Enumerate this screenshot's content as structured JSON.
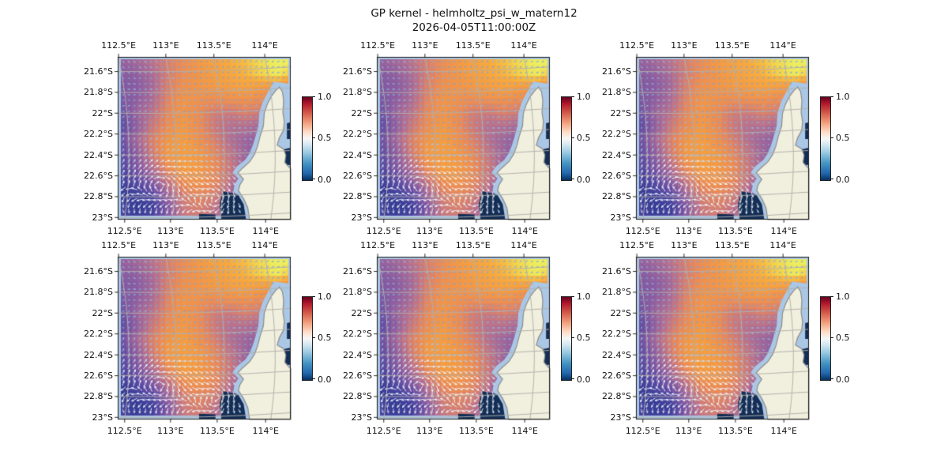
{
  "title": "GP kernel - helmholtz_psi_w_matern12",
  "subtitle": "2026-04-05T11:00:00Z",
  "chart_data": {
    "type": "heatmap",
    "layout": {
      "rows": 2,
      "cols": 3,
      "grid_on": true,
      "legend_position": "right-colorbar"
    },
    "x_ticks": [
      "112.5°E",
      "113°E",
      "113.5°E",
      "114°E"
    ],
    "y_ticks": [
      "21.6°S",
      "21.8°S",
      "22°S",
      "22.2°S",
      "22.4°S",
      "22.6°S",
      "22.8°S",
      "23°S"
    ],
    "xlabel": "",
    "ylabel": "",
    "lon_range": [
      112.5,
      114.27
    ],
    "lat_range": [
      21.46,
      23.02
    ],
    "colorbar": {
      "ticks": [
        "1.0",
        "0.5",
        "0.0"
      ],
      "range": [
        0.0,
        1.0
      ],
      "stops": [
        {
          "p": 0.0,
          "c": "#67001f"
        },
        {
          "p": 0.08,
          "c": "#b2182b"
        },
        {
          "p": 0.2,
          "c": "#d6604d"
        },
        {
          "p": 0.32,
          "c": "#f4a582"
        },
        {
          "p": 0.42,
          "c": "#fddbc7"
        },
        {
          "p": 0.5,
          "c": "#f7f7f7"
        },
        {
          "p": 0.58,
          "c": "#d1e5f0"
        },
        {
          "p": 0.68,
          "c": "#92c5de"
        },
        {
          "p": 0.8,
          "c": "#4393c3"
        },
        {
          "p": 0.92,
          "c": "#2166ac"
        },
        {
          "p": 1.0,
          "c": "#053061"
        }
      ]
    },
    "heat_colormap": [
      {
        "p": 0.0,
        "c": "#16275e"
      },
      {
        "p": 0.08,
        "c": "#222f77"
      },
      {
        "p": 0.16,
        "c": "#333a92"
      },
      {
        "p": 0.26,
        "c": "#4b449f"
      },
      {
        "p": 0.36,
        "c": "#6b51a3"
      },
      {
        "p": 0.46,
        "c": "#8f5fa0"
      },
      {
        "p": 0.55,
        "c": "#b06f93"
      },
      {
        "p": 0.63,
        "c": "#cf7c78"
      },
      {
        "p": 0.7,
        "c": "#e88a5a"
      },
      {
        "p": 0.78,
        "c": "#f39a44"
      },
      {
        "p": 0.86,
        "c": "#f7ab3d"
      },
      {
        "p": 0.93,
        "c": "#f3cf4a"
      },
      {
        "p": 1.0,
        "c": "#ecf060"
      }
    ],
    "values_grid": [
      [
        0.48,
        0.52,
        0.58,
        0.66,
        0.72,
        0.78,
        0.82,
        0.86,
        0.9,
        0.96,
        1.0,
        1.0
      ],
      [
        0.44,
        0.47,
        0.54,
        0.64,
        0.72,
        0.76,
        0.8,
        0.84,
        0.88,
        0.94,
        1.0,
        0.92
      ],
      [
        0.42,
        0.44,
        0.52,
        0.66,
        0.74,
        0.76,
        0.78,
        0.8,
        0.82,
        0.8,
        0.78,
        0.72
      ],
      [
        0.4,
        0.46,
        0.54,
        0.68,
        0.76,
        0.74,
        0.72,
        0.74,
        0.74,
        0.72,
        0.68,
        0.62
      ],
      [
        0.36,
        0.5,
        0.58,
        0.7,
        0.76,
        0.72,
        0.64,
        0.62,
        0.66,
        0.62,
        0.58,
        0.55
      ],
      [
        0.32,
        0.46,
        0.62,
        0.72,
        0.78,
        0.72,
        0.62,
        0.56,
        0.56,
        0.52,
        0.5,
        0.48
      ],
      [
        0.36,
        0.52,
        0.66,
        0.76,
        0.8,
        0.74,
        0.66,
        0.56,
        0.5,
        0.46,
        0.44,
        0.42
      ],
      [
        0.32,
        0.46,
        0.64,
        0.78,
        0.8,
        0.78,
        0.7,
        0.6,
        0.5,
        0.42,
        0.36,
        0.34
      ],
      [
        0.28,
        0.42,
        0.56,
        0.72,
        0.8,
        0.78,
        0.72,
        0.62,
        0.5,
        0.38,
        0.28,
        0.24
      ],
      [
        0.22,
        0.32,
        0.46,
        0.62,
        0.74,
        0.76,
        0.7,
        0.6,
        0.44,
        0.28,
        0.16,
        0.14
      ],
      [
        0.18,
        0.22,
        0.32,
        0.52,
        0.66,
        0.7,
        0.66,
        0.54,
        0.32,
        0.14,
        0.08,
        0.08
      ],
      [
        0.24,
        0.16,
        0.22,
        0.42,
        0.62,
        0.66,
        0.6,
        0.44,
        0.2,
        0.08,
        0.05,
        0.05
      ],
      [
        0.28,
        0.22,
        0.26,
        0.46,
        0.6,
        0.62,
        0.56,
        0.38,
        0.16,
        0.06,
        0.04,
        0.04
      ]
    ],
    "map": {
      "ocean_color": "#aac7e6",
      "land_color": "#f1efdd",
      "land_edge_color": "#8c8c8a",
      "navy_color": "#142e56",
      "grid_color": "#b2b0ac",
      "frame_color": "#1a1a1a",
      "land_polygon": [
        [
          0.935,
          0.185
        ],
        [
          0.912,
          0.208
        ],
        [
          0.888,
          0.242
        ],
        [
          0.864,
          0.292
        ],
        [
          0.847,
          0.348
        ],
        [
          0.842,
          0.425
        ],
        [
          0.823,
          0.487
        ],
        [
          0.809,
          0.547
        ],
        [
          0.791,
          0.598
        ],
        [
          0.764,
          0.643
        ],
        [
          0.722,
          0.683
        ],
        [
          0.695,
          0.713
        ],
        [
          0.727,
          0.752
        ],
        [
          0.706,
          0.787
        ],
        [
          0.698,
          0.822
        ],
        [
          0.728,
          0.872
        ],
        [
          0.752,
          0.928
        ],
        [
          0.762,
          1.0
        ],
        [
          1.0,
          1.0
        ],
        [
          1.0,
          0.688
        ],
        [
          0.985,
          0.672
        ],
        [
          0.966,
          0.648
        ],
        [
          0.972,
          0.603
        ],
        [
          0.958,
          0.565
        ],
        [
          0.922,
          0.542
        ],
        [
          0.934,
          0.498
        ],
        [
          0.958,
          0.452
        ],
        [
          0.963,
          0.398
        ],
        [
          0.955,
          0.343
        ],
        [
          0.959,
          0.268
        ],
        [
          0.952,
          0.215
        ]
      ],
      "nodata_polygon": [
        [
          0.902,
          0.152
        ],
        [
          0.96,
          0.16
        ],
        [
          1.0,
          0.168
        ],
        [
          1.0,
          1.0
        ],
        [
          0.73,
          1.0
        ],
        [
          0.72,
          0.92
        ],
        [
          0.698,
          0.868
        ],
        [
          0.668,
          0.825
        ],
        [
          0.676,
          0.782
        ],
        [
          0.697,
          0.748
        ],
        [
          0.663,
          0.71
        ],
        [
          0.69,
          0.672
        ],
        [
          0.737,
          0.632
        ],
        [
          0.762,
          0.592
        ],
        [
          0.781,
          0.542
        ],
        [
          0.797,
          0.487
        ],
        [
          0.813,
          0.425
        ],
        [
          0.818,
          0.345
        ],
        [
          0.836,
          0.283
        ],
        [
          0.86,
          0.232
        ],
        [
          0.882,
          0.192
        ]
      ],
      "navy_patches": [
        [
          [
            0.945,
            0.572
          ],
          [
            1.0,
            0.558
          ],
          [
            1.0,
            0.665
          ],
          [
            0.952,
            0.662
          ],
          [
            0.928,
            0.618
          ]
        ],
        [
          [
            0.978,
            0.408
          ],
          [
            1.0,
            0.402
          ],
          [
            1.0,
            0.505
          ],
          [
            0.978,
            0.505
          ]
        ],
        [
          [
            0.608,
            0.825
          ],
          [
            0.695,
            0.845
          ],
          [
            0.728,
            0.905
          ],
          [
            0.742,
            1.0
          ],
          [
            0.6,
            1.0
          ],
          [
            0.588,
            0.91
          ]
        ],
        [
          [
            0.47,
            0.965
          ],
          [
            0.565,
            0.968
          ],
          [
            0.565,
            1.0
          ],
          [
            0.47,
            1.0
          ]
        ]
      ],
      "blue_cell": {
        "poly": [
          [
            0.888,
            0.638
          ],
          [
            0.912,
            0.638
          ],
          [
            0.912,
            0.672
          ],
          [
            0.888,
            0.672
          ]
        ],
        "color": "#3c5fc0"
      }
    },
    "quiver": {
      "spacing_px": 7,
      "color_short": "#84a0cc",
      "color_long": "#f2f8fd",
      "swirl1": [
        0.24,
        0.8
      ],
      "swirl2": [
        0.56,
        0.87
      ],
      "base_len": 1.6,
      "max_len": 7.0
    }
  }
}
